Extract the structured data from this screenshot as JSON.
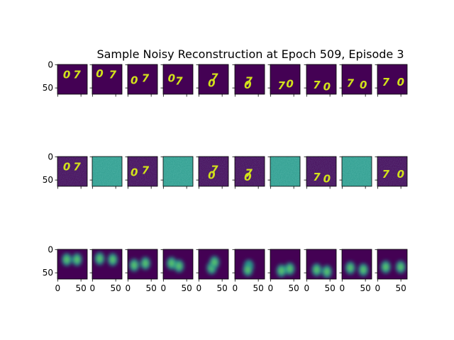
{
  "chart_data": {
    "type": "heatmap",
    "title": "Sample Noisy Reconstruction at Epoch 509, Episode 3",
    "colormap": "viridis",
    "rows": 3,
    "cols": 10,
    "image_size": [
      64,
      64
    ],
    "y_ticks": [
      "0",
      "50"
    ],
    "x_ticks": [
      "0",
      "50"
    ],
    "row_contents": [
      {
        "name": "",
        "frames": [
          "07",
          "07",
          "07",
          "07",
          "07",
          "70",
          "70",
          "70",
          "70",
          "70"
        ]
      },
      {
        "name": "",
        "frames": [
          "07",
          "",
          "07",
          "",
          "07",
          "70",
          "",
          "70",
          "",
          "70"
        ],
        "noise_only": [
          false,
          true,
          false,
          true,
          false,
          false,
          true,
          false,
          true,
          false
        ]
      },
      {
        "name": "",
        "frames": [
          "",
          "",
          "",
          "",
          "",
          "",
          "",
          "",
          "",
          ""
        ]
      }
    ],
    "colors": {
      "background": "#440154",
      "digit": "#d2e21b",
      "noise_field": "#2a9a8c",
      "blob_mid": "#21918c",
      "blob_high": "#5ec962"
    }
  }
}
